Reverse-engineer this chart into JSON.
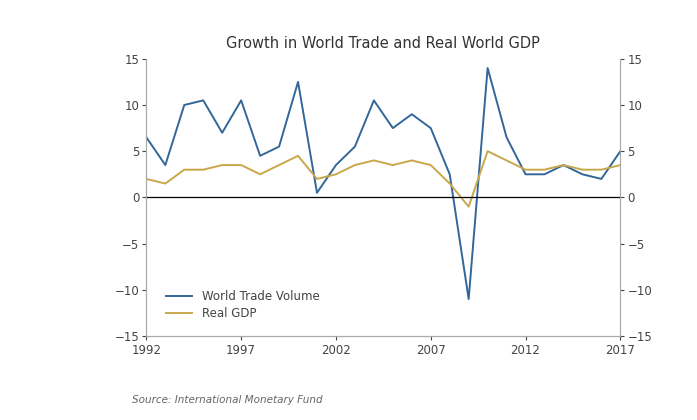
{
  "title": "Growth in World Trade and Real World GDP",
  "source": "Source: International Monetary Fund",
  "years": [
    1992,
    1993,
    1994,
    1995,
    1996,
    1997,
    1998,
    1999,
    2000,
    2001,
    2002,
    2003,
    2004,
    2005,
    2006,
    2007,
    2008,
    2009,
    2010,
    2011,
    2012,
    2013,
    2014,
    2015,
    2016,
    2017
  ],
  "world_trade_volume": [
    6.5,
    3.5,
    10.0,
    10.5,
    7.0,
    10.5,
    4.5,
    5.5,
    12.5,
    0.5,
    3.5,
    5.5,
    10.5,
    7.5,
    9.0,
    7.5,
    2.5,
    -11.0,
    14.0,
    6.5,
    2.5,
    2.5,
    3.5,
    2.5,
    2.0,
    5.0
  ],
  "real_gdp": [
    2.0,
    1.5,
    3.0,
    3.0,
    3.5,
    3.5,
    2.5,
    3.5,
    4.5,
    2.0,
    2.5,
    3.5,
    4.0,
    3.5,
    4.0,
    3.5,
    1.5,
    -1.0,
    5.0,
    4.0,
    3.0,
    3.0,
    3.5,
    3.0,
    3.0,
    3.5
  ],
  "trade_color": "#336699",
  "gdp_color": "#c8a84b",
  "ylim": [
    -15,
    15
  ],
  "yticks": [
    -15,
    -10,
    -5,
    0,
    5,
    10,
    15
  ],
  "xticks": [
    1992,
    1997,
    2002,
    2007,
    2012,
    2017
  ],
  "fig_facecolor": "#ffffff",
  "panel_facecolor": "#f0f0f0",
  "plot_facecolor": "#ffffff",
  "panel_edgecolor": "#cccccc",
  "trade_label": "World Trade Volume",
  "gdp_label": "Real GDP",
  "title_fontsize": 10.5,
  "tick_fontsize": 8.5,
  "legend_fontsize": 8.5,
  "source_fontsize": 7.5,
  "trade_linewidth": 1.4,
  "gdp_linewidth": 1.4
}
